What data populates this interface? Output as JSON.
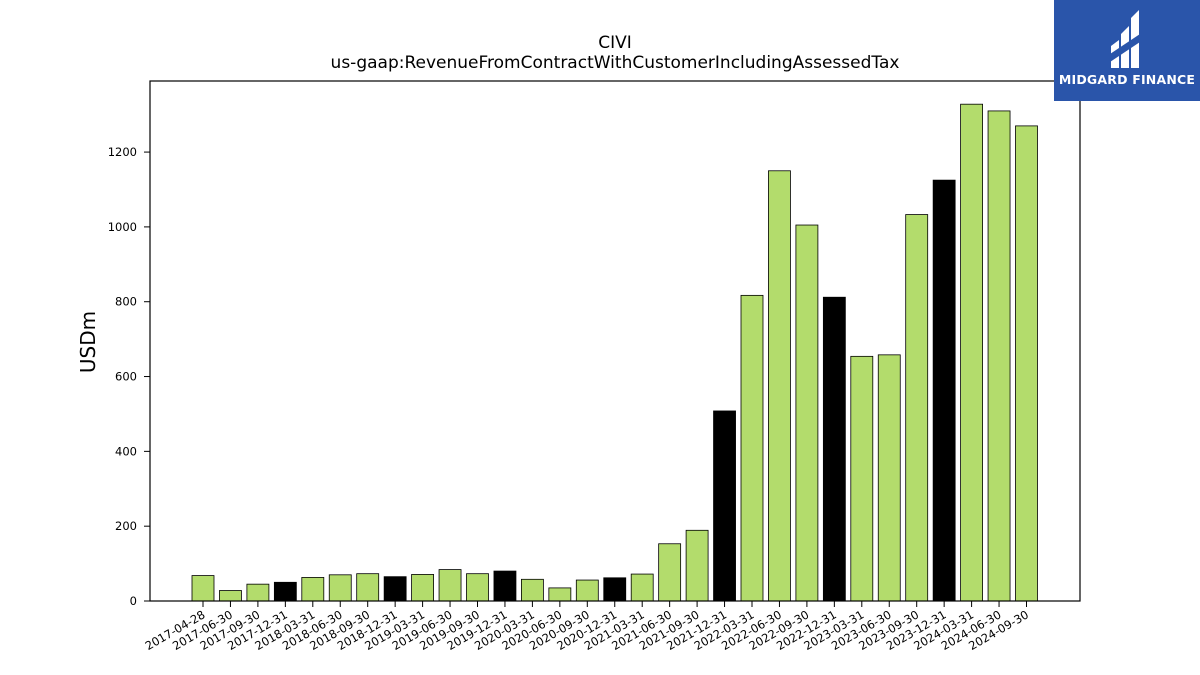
{
  "brand": {
    "name": "MIDGARD FINANCE",
    "color": "#2a55aa",
    "icon": "midgard-logo-icon"
  },
  "chart_data": {
    "type": "bar",
    "title": "CIVI",
    "subtitle": "us-gaap:RevenueFromContractWithCustomerIncludingAssessedTax",
    "ylabel": "USDm",
    "xlabel": "",
    "ylim": [
      0,
      1390
    ],
    "yticks": [
      0,
      200,
      400,
      600,
      800,
      1000,
      1200
    ],
    "grid": false,
    "colors": {
      "quarter": "#b3dc6c",
      "annual": "#000000",
      "edge": "#000000"
    },
    "categories": [
      "2017-04-28",
      "2017-06-30",
      "2017-09-30",
      "2017-12-31",
      "2018-03-31",
      "2018-06-30",
      "2018-09-30",
      "2018-12-31",
      "2019-03-31",
      "2019-06-30",
      "2019-09-30",
      "2019-12-31",
      "2020-03-31",
      "2020-06-30",
      "2020-09-30",
      "2020-12-31",
      "2021-03-31",
      "2021-06-30",
      "2021-09-30",
      "2021-12-31",
      "2022-03-31",
      "2022-06-30",
      "2022-09-30",
      "2022-12-31",
      "2023-03-31",
      "2023-06-30",
      "2023-09-30",
      "2023-12-31",
      "2024-03-31",
      "2024-06-30",
      "2024-09-30"
    ],
    "values": [
      68,
      28,
      45,
      50,
      63,
      70,
      73,
      65,
      71,
      84,
      73,
      80,
      58,
      35,
      56,
      62,
      72,
      153,
      189,
      508,
      817,
      1150,
      1005,
      812,
      654,
      658,
      1033,
      1125,
      1328,
      1310,
      1270
    ],
    "highlight": [
      false,
      false,
      false,
      true,
      false,
      false,
      false,
      true,
      false,
      false,
      false,
      true,
      false,
      false,
      false,
      true,
      false,
      false,
      false,
      true,
      false,
      false,
      false,
      true,
      false,
      false,
      false,
      true,
      false,
      false,
      false
    ]
  }
}
